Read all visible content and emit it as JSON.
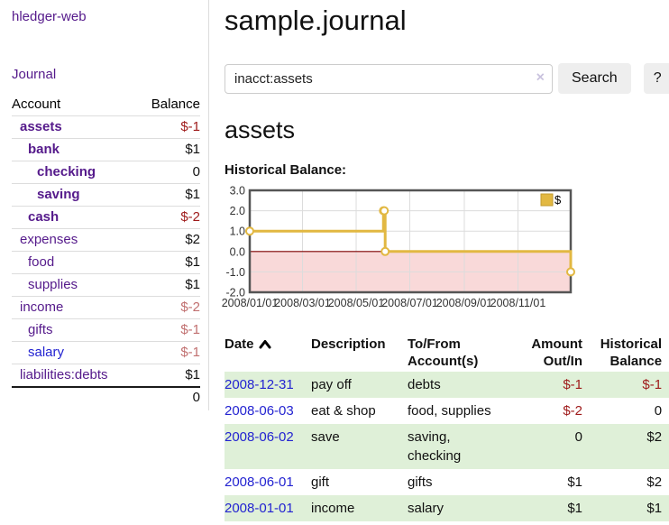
{
  "app": {
    "brand": "hledger-web",
    "nav_journal": "Journal"
  },
  "colors": {
    "purple": "#551a8b",
    "blue": "#2323d1",
    "neg-strong": "#9e1a1a",
    "neg-soft": "#c17070",
    "green": "#dff0d8",
    "gold": "#e2b842",
    "gold-dark": "#c19a2e",
    "pink": "#f9d9d9",
    "zero": "#7e0000",
    "grid": "#dcdcdc",
    "chart-border": "#555555",
    "border-gray": "#dddddd",
    "btn": "#eeeeee",
    "clear": "#c9c2de"
  },
  "sidebar": {
    "header": {
      "account": "Account",
      "balance": "Balance"
    },
    "accounts": [
      {
        "name": "assets",
        "indent": 1,
        "bold": true,
        "balance": "$-1",
        "neg": "strong"
      },
      {
        "name": "bank",
        "indent": 2,
        "bold": true,
        "balance": "$1"
      },
      {
        "name": "checking",
        "indent": 3,
        "bold": true,
        "balance": "0"
      },
      {
        "name": "saving",
        "indent": 3,
        "bold": true,
        "balance": "$1"
      },
      {
        "name": "cash",
        "indent": 2,
        "bold": true,
        "balance": "$-2",
        "neg": "strong"
      },
      {
        "name": "expenses",
        "indent": 1,
        "bold": false,
        "balance": "$2"
      },
      {
        "name": "food",
        "indent": 2,
        "bold": false,
        "balance": "$1"
      },
      {
        "name": "supplies",
        "indent": 2,
        "bold": false,
        "balance": "$1"
      },
      {
        "name": "income",
        "indent": 1,
        "bold": false,
        "balance": "$-2",
        "neg": "soft"
      },
      {
        "name": "gifts",
        "indent": 2,
        "bold": false,
        "balance": "$-1",
        "neg": "soft"
      },
      {
        "name": "salary",
        "indent": 2,
        "bold": false,
        "balance": "$-1",
        "neg": "soft",
        "link": "blue"
      },
      {
        "name": "liabilities:debts",
        "indent": 1,
        "bold": false,
        "balance": "$1"
      }
    ],
    "total": "0"
  },
  "header": {
    "title": "sample.journal"
  },
  "search": {
    "value": "inacct:assets",
    "clear_icon": "×",
    "button_label": "Search",
    "help_label": "?"
  },
  "account_page": {
    "heading": "assets",
    "chart_label": "Historical Balance:"
  },
  "chart_data": {
    "type": "line",
    "title": "Historical Balance:",
    "step": true,
    "series": [
      {
        "name": "$",
        "points": [
          [
            "2008-01-01",
            1
          ],
          [
            "2008-06-01",
            2
          ],
          [
            "2008-06-02",
            2
          ],
          [
            "2008-06-03",
            0
          ],
          [
            "2008-12-31",
            -1
          ]
        ]
      }
    ],
    "x_ticks": [
      "2008/01/01",
      "2008/03/01",
      "2008/05/01",
      "2008/07/01",
      "2008/09/01",
      "2008/11/01"
    ],
    "y_ticks": [
      "3.0",
      "2.0",
      "1.0",
      "0.0",
      "-1.0",
      "-2.0"
    ],
    "ylim": [
      -2,
      3
    ],
    "x_range": [
      "2008-01-01",
      "2008-12-31"
    ],
    "grid": true,
    "legend_position": "top-right",
    "negative_region_shaded": true
  },
  "register": {
    "columns": [
      "Date",
      "Description",
      "To/From Account(s)",
      "Amount Out/In",
      "Historical Balance"
    ],
    "sort_icon": "chevron-up",
    "rows": [
      {
        "date": "2008-12-31",
        "description": "pay off",
        "accounts": "debts",
        "amount": "$-1",
        "amount_neg": true,
        "balance": "$-1",
        "balance_neg": true
      },
      {
        "date": "2008-06-03",
        "description": "eat & shop",
        "accounts": "food, supplies",
        "amount": "$-2",
        "amount_neg": true,
        "balance": "0",
        "balance_neg": false
      },
      {
        "date": "2008-06-02",
        "description": "save",
        "accounts": "saving, checking",
        "amount": "0",
        "amount_neg": false,
        "balance": "$2",
        "balance_neg": false
      },
      {
        "date": "2008-06-01",
        "description": "gift",
        "accounts": "gifts",
        "amount": "$1",
        "amount_neg": false,
        "balance": "$2",
        "balance_neg": false
      },
      {
        "date": "2008-01-01",
        "description": "income",
        "accounts": "salary",
        "amount": "$1",
        "amount_neg": false,
        "balance": "$1",
        "balance_neg": false
      }
    ]
  }
}
